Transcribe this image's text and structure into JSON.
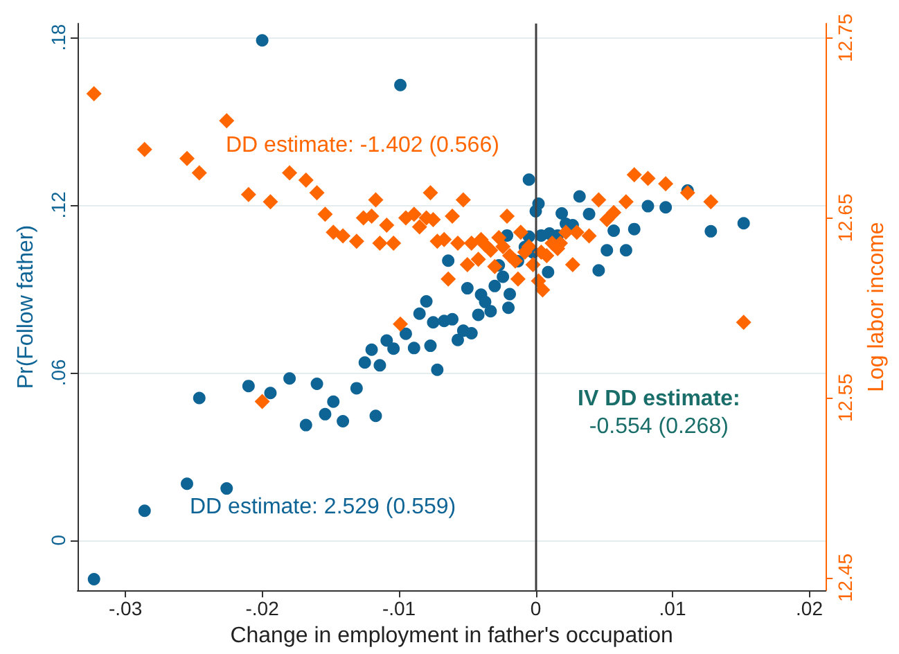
{
  "chart_data": {
    "type": "scatter",
    "xlabel": "Change in employment in father's occupation",
    "ylabel": "Pr(Follow father)",
    "y2label": "Log labor income",
    "xlim": [
      -0.0335,
      0.0212
    ],
    "xticks": [
      {
        "value": -0.03,
        "label": "-.03"
      },
      {
        "value": -0.02,
        "label": "-.02"
      },
      {
        "value": -0.01,
        "label": "-.01"
      },
      0,
      {
        "value": 0.01,
        "label": ".01"
      },
      {
        "value": 0.02,
        "label": ".02"
      }
    ],
    "ylim": [
      -0.018,
      0.185
    ],
    "yticks": [
      0,
      {
        "value": 0.06,
        "label": ".06"
      },
      {
        "value": 0.12,
        "label": ".12"
      },
      {
        "value": 0.18,
        "label": ".18"
      }
    ],
    "y2lim": [
      12.443,
      12.758
    ],
    "y2ticks": [
      12.45,
      12.55,
      12.65,
      12.75
    ],
    "grid": "y",
    "ref_lines": [
      {
        "axis": "x",
        "value": 0,
        "color": "#404040"
      }
    ],
    "annotations": [
      "DD estimate: -1.402 (0.566)",
      "DD estimate: 2.529 (0.559)",
      "IV DD estimate:\n-0.554 (0.268)"
    ],
    "series": [
      {
        "color": "#0f6496",
        "marker": "circle",
        "x": [
          -0.02,
          -0.0099,
          -0.0323,
          -0.0286,
          -0.0255,
          -0.0226,
          -0.0246,
          -0.021,
          -0.0194,
          -0.018,
          -0.016,
          -0.0148,
          -0.0154,
          -0.0168,
          -0.0141,
          -0.0131,
          -0.0117,
          -0.0125,
          -0.012,
          -0.0114,
          -0.0109,
          -0.0104,
          -0.0095,
          -0.0089,
          -0.0085,
          -0.008,
          -0.0077,
          -0.0075,
          -0.0072,
          -0.0067,
          -0.0061,
          -0.0064,
          -0.0057,
          -0.0053,
          -0.0047,
          -0.005,
          -0.0042,
          -0.004,
          -0.0037,
          -0.0033,
          -0.003,
          -0.0027,
          -0.0024,
          -0.002,
          -0.0019,
          -0.0021,
          -0.0005,
          0.0002,
          0.0,
          -0.0005,
          -0.0002,
          0.0004,
          0.0009,
          0.001,
          0.0016,
          0.0019,
          0.0022,
          0.0027,
          0.0032,
          0.0039,
          0.0046,
          0.0052,
          0.0057,
          0.0066,
          0.0072,
          0.0082,
          0.0095,
          0.0111,
          0.0128,
          0.0152,
          -0.0013,
          -0.0008
        ],
        "values": [
          0.179,
          0.163,
          -0.014,
          0.0105,
          0.0202,
          0.0185,
          0.0509,
          0.0552,
          0.0527,
          0.0579,
          0.056,
          0.0496,
          0.0451,
          0.0412,
          0.0426,
          0.0544,
          0.0445,
          0.0636,
          0.0682,
          0.0626,
          0.0715,
          0.0686,
          0.0739,
          0.0688,
          0.0811,
          0.0855,
          0.0696,
          0.078,
          0.061,
          0.0785,
          0.0791,
          0.1001,
          0.0717,
          0.075,
          0.0741,
          0.0902,
          0.0807,
          0.0879,
          0.0853,
          0.082,
          0.091,
          0.0984,
          0.0943,
          0.0832,
          0.0881,
          0.1091,
          0.1291,
          0.1205,
          0.1178,
          0.1087,
          0.103,
          0.1091,
          0.096,
          0.1098,
          0.1091,
          0.117,
          0.1133,
          0.1128,
          0.1231,
          0.1168,
          0.0966,
          0.1038,
          0.1108,
          0.1038,
          0.1114,
          0.1196,
          0.1192,
          0.1252,
          0.1106,
          0.1135,
          0.0999,
          0.105
        ]
      },
      {
        "color": "#ff6600",
        "marker": "diamond",
        "axis": "y2",
        "x": [
          -0.0323,
          -0.0286,
          -0.0226,
          -0.0255,
          -0.0246,
          -0.021,
          -0.0194,
          -0.018,
          -0.0168,
          -0.016,
          -0.0154,
          -0.0148,
          -0.0141,
          -0.0131,
          -0.0126,
          -0.012,
          -0.0117,
          -0.0114,
          -0.0109,
          -0.0104,
          -0.0095,
          -0.0089,
          -0.0085,
          -0.008,
          -0.0075,
          -0.0077,
          -0.0072,
          -0.0067,
          -0.0061,
          -0.0064,
          -0.0057,
          -0.0053,
          -0.005,
          -0.0047,
          -0.0042,
          -0.004,
          -0.0037,
          -0.0033,
          -0.003,
          -0.0027,
          -0.0024,
          -0.0021,
          -0.0019,
          -0.0015,
          -0.0013,
          -0.0011,
          -0.0008,
          -0.0005,
          -0.0002,
          0.0002,
          0.0005,
          0.0004,
          0.0008,
          0.0012,
          0.0016,
          0.0018,
          0.0022,
          0.0027,
          0.003,
          0.0039,
          0.0046,
          0.0052,
          0.0057,
          0.0066,
          0.0072,
          0.0082,
          0.0095,
          0.0111,
          0.0128,
          0.0152,
          -0.0099,
          -0.02
        ],
        "values": [
          12.719,
          12.688,
          12.704,
          12.683,
          12.675,
          12.663,
          12.659,
          12.675,
          12.671,
          12.664,
          12.652,
          12.642,
          12.64,
          12.637,
          12.65,
          12.651,
          12.66,
          12.636,
          12.646,
          12.636,
          12.65,
          12.652,
          12.645,
          12.65,
          12.649,
          12.664,
          12.637,
          12.638,
          12.651,
          12.616,
          12.636,
          12.66,
          12.624,
          12.636,
          12.627,
          12.638,
          12.635,
          12.632,
          12.623,
          12.639,
          12.634,
          12.651,
          12.629,
          12.626,
          12.616,
          12.642,
          12.631,
          12.634,
          12.624,
          12.615,
          12.61,
          12.631,
          12.629,
          12.636,
          12.633,
          12.636,
          12.642,
          12.624,
          12.642,
          12.64,
          12.66,
          12.649,
          12.653,
          12.659,
          12.674,
          12.672,
          12.669,
          12.664,
          12.659,
          12.592,
          12.591,
          12.548
        ]
      }
    ]
  }
}
